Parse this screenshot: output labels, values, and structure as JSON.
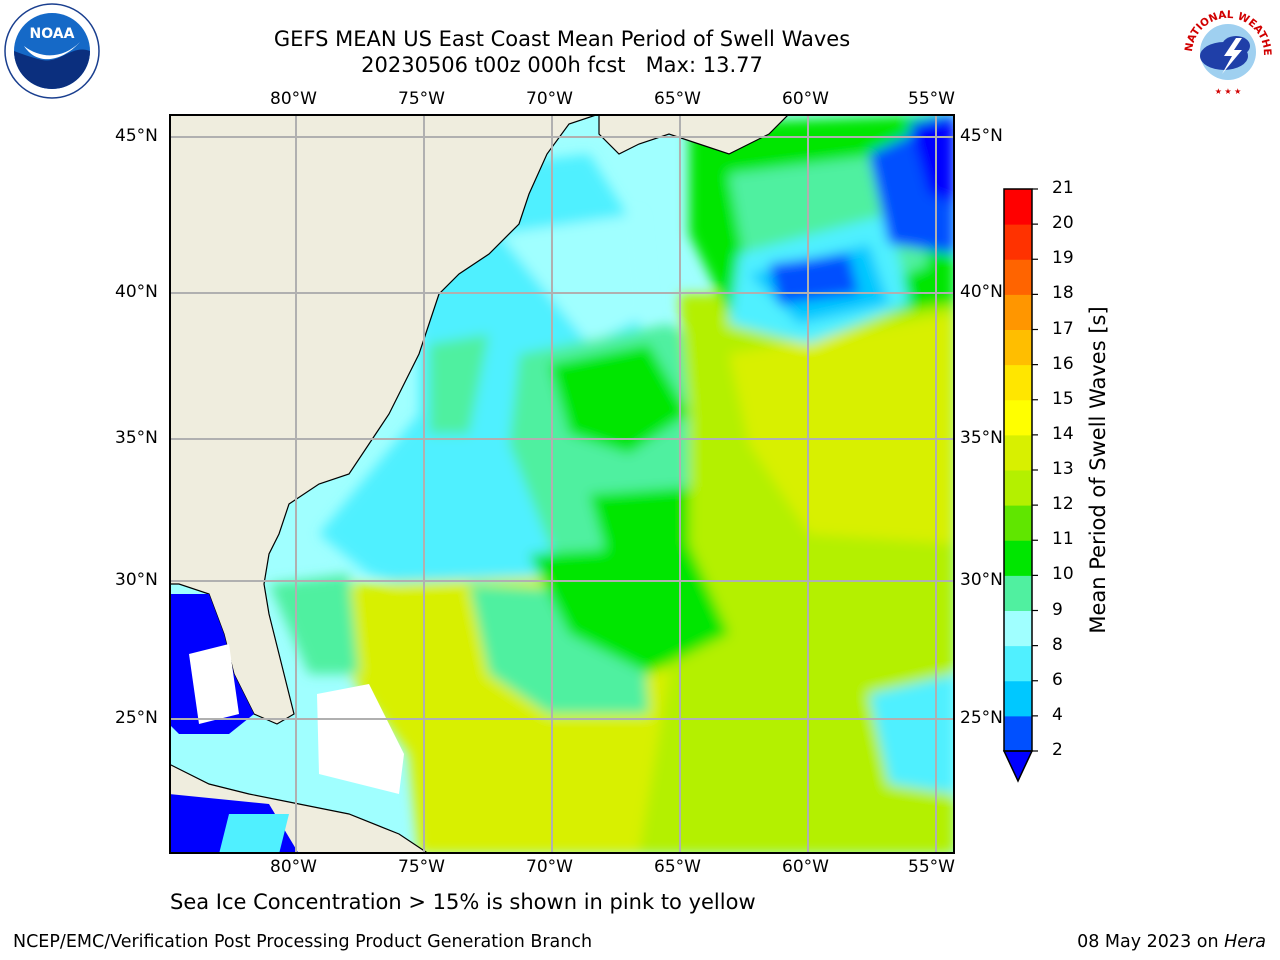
{
  "title": {
    "line1": "GEFS MEAN US East Coast Mean Period of Swell Waves",
    "line2": "20230506 t00z 000h fcst   Max: 13.77"
  },
  "lon_labels": [
    "80°W",
    "75°W",
    "70°W",
    "65°W",
    "60°W",
    "55°W"
  ],
  "lat_labels": [
    "45°N",
    "40°N",
    "35°N",
    "30°N",
    "25°N"
  ],
  "colorbar": {
    "label": "Mean Period of Swell Waves [s]",
    "ticks": [
      "2",
      "4",
      "6",
      "8",
      "9",
      "10",
      "11",
      "12",
      "13",
      "14",
      "15",
      "16",
      "17",
      "18",
      "19",
      "20",
      "21"
    ],
    "colors": [
      "#0050ff",
      "#00c8ff",
      "#50f0ff",
      "#a0ffff",
      "#50f0a0",
      "#00e600",
      "#60e600",
      "#b4f000",
      "#d8f000",
      "#ffff00",
      "#ffe600",
      "#ffbe00",
      "#ff9600",
      "#ff6400",
      "#ff3200",
      "#ff0000"
    ],
    "under_color": "#0000ff"
  },
  "subtitle": "Sea Ice Concentration > 15% is shown in pink to yellow",
  "footer": {
    "left": "NCEP/EMC/Verification Post Processing Product Generation Branch",
    "date": "08 May 2023 on ",
    "machine": "Hera"
  },
  "logos": {
    "noaa_text": "NOAA",
    "nws_text": "NATIONAL WEATHER SERVICE"
  },
  "colors": {
    "land": "#efedde",
    "grid": "#b0b0b0"
  }
}
